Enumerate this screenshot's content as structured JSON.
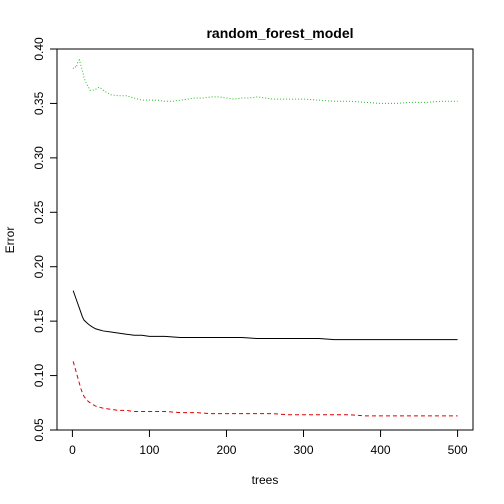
{
  "chart_data": {
    "type": "line",
    "title": "random_forest_model",
    "xlabel": "trees",
    "ylabel": "Error",
    "xlim": [
      -20,
      520
    ],
    "ylim": [
      0.05,
      0.4
    ],
    "xticks": [
      "0",
      "100",
      "200",
      "300",
      "400",
      "500"
    ],
    "yticks": [
      "0.05",
      "0.10",
      "0.15",
      "0.20",
      "0.25",
      "0.30",
      "0.35",
      "0.40"
    ],
    "grid": false,
    "legend": "none",
    "series": [
      {
        "color": "#22bb22",
        "dash": "1,2",
        "points": [
          [
            1,
            0.382
          ],
          [
            3,
            0.384
          ],
          [
            5,
            0.383
          ],
          [
            7,
            0.388
          ],
          [
            9,
            0.39
          ],
          [
            11,
            0.385
          ],
          [
            13,
            0.38
          ],
          [
            15,
            0.374
          ],
          [
            17,
            0.37
          ],
          [
            20,
            0.366
          ],
          [
            23,
            0.362
          ],
          [
            26,
            0.362
          ],
          [
            30,
            0.363
          ],
          [
            35,
            0.365
          ],
          [
            40,
            0.362
          ],
          [
            45,
            0.36
          ],
          [
            50,
            0.358
          ],
          [
            60,
            0.357
          ],
          [
            70,
            0.357
          ],
          [
            80,
            0.355
          ],
          [
            90,
            0.353
          ],
          [
            100,
            0.353
          ],
          [
            110,
            0.353
          ],
          [
            120,
            0.352
          ],
          [
            130,
            0.352
          ],
          [
            140,
            0.353
          ],
          [
            150,
            0.354
          ],
          [
            160,
            0.355
          ],
          [
            170,
            0.355
          ],
          [
            180,
            0.356
          ],
          [
            190,
            0.356
          ],
          [
            200,
            0.355
          ],
          [
            210,
            0.354
          ],
          [
            220,
            0.355
          ],
          [
            230,
            0.355
          ],
          [
            240,
            0.356
          ],
          [
            250,
            0.355
          ],
          [
            260,
            0.354
          ],
          [
            280,
            0.354
          ],
          [
            300,
            0.354
          ],
          [
            320,
            0.353
          ],
          [
            340,
            0.352
          ],
          [
            360,
            0.352
          ],
          [
            380,
            0.351
          ],
          [
            400,
            0.35
          ],
          [
            420,
            0.35
          ],
          [
            440,
            0.351
          ],
          [
            460,
            0.351
          ],
          [
            480,
            0.352
          ],
          [
            500,
            0.352
          ]
        ]
      },
      {
        "color": "#000000",
        "dash": "",
        "points": [
          [
            1,
            0.178
          ],
          [
            3,
            0.174
          ],
          [
            5,
            0.17
          ],
          [
            7,
            0.166
          ],
          [
            9,
            0.162
          ],
          [
            11,
            0.158
          ],
          [
            13,
            0.154
          ],
          [
            15,
            0.151
          ],
          [
            18,
            0.149
          ],
          [
            21,
            0.147
          ],
          [
            25,
            0.145
          ],
          [
            30,
            0.143
          ],
          [
            35,
            0.142
          ],
          [
            40,
            0.141
          ],
          [
            50,
            0.14
          ],
          [
            60,
            0.139
          ],
          [
            70,
            0.138
          ],
          [
            80,
            0.137
          ],
          [
            90,
            0.137
          ],
          [
            100,
            0.136
          ],
          [
            120,
            0.136
          ],
          [
            140,
            0.135
          ],
          [
            160,
            0.135
          ],
          [
            180,
            0.135
          ],
          [
            200,
            0.135
          ],
          [
            220,
            0.135
          ],
          [
            240,
            0.134
          ],
          [
            260,
            0.134
          ],
          [
            280,
            0.134
          ],
          [
            300,
            0.134
          ],
          [
            320,
            0.134
          ],
          [
            340,
            0.133
          ],
          [
            360,
            0.133
          ],
          [
            380,
            0.133
          ],
          [
            400,
            0.133
          ],
          [
            420,
            0.133
          ],
          [
            440,
            0.133
          ],
          [
            460,
            0.133
          ],
          [
            480,
            0.133
          ],
          [
            500,
            0.133
          ]
        ]
      },
      {
        "color": "#dd0000",
        "dash": "4,3",
        "points": [
          [
            1,
            0.113
          ],
          [
            3,
            0.108
          ],
          [
            5,
            0.103
          ],
          [
            7,
            0.098
          ],
          [
            9,
            0.093
          ],
          [
            11,
            0.088
          ],
          [
            13,
            0.084
          ],
          [
            15,
            0.081
          ],
          [
            18,
            0.078
          ],
          [
            21,
            0.076
          ],
          [
            25,
            0.074
          ],
          [
            30,
            0.072
          ],
          [
            35,
            0.071
          ],
          [
            40,
            0.07
          ],
          [
            50,
            0.069
          ],
          [
            60,
            0.068
          ],
          [
            70,
            0.068
          ],
          [
            80,
            0.067
          ],
          [
            100,
            0.067
          ],
          [
            120,
            0.067
          ],
          [
            140,
            0.066
          ],
          [
            160,
            0.066
          ],
          [
            180,
            0.065
          ],
          [
            200,
            0.065
          ],
          [
            220,
            0.065
          ],
          [
            240,
            0.065
          ],
          [
            260,
            0.065
          ],
          [
            280,
            0.064
          ],
          [
            300,
            0.064
          ],
          [
            320,
            0.064
          ],
          [
            340,
            0.064
          ],
          [
            360,
            0.064
          ],
          [
            380,
            0.063
          ],
          [
            400,
            0.063
          ],
          [
            420,
            0.063
          ],
          [
            440,
            0.063
          ],
          [
            460,
            0.063
          ],
          [
            480,
            0.063
          ],
          [
            500,
            0.063
          ]
        ]
      }
    ]
  }
}
